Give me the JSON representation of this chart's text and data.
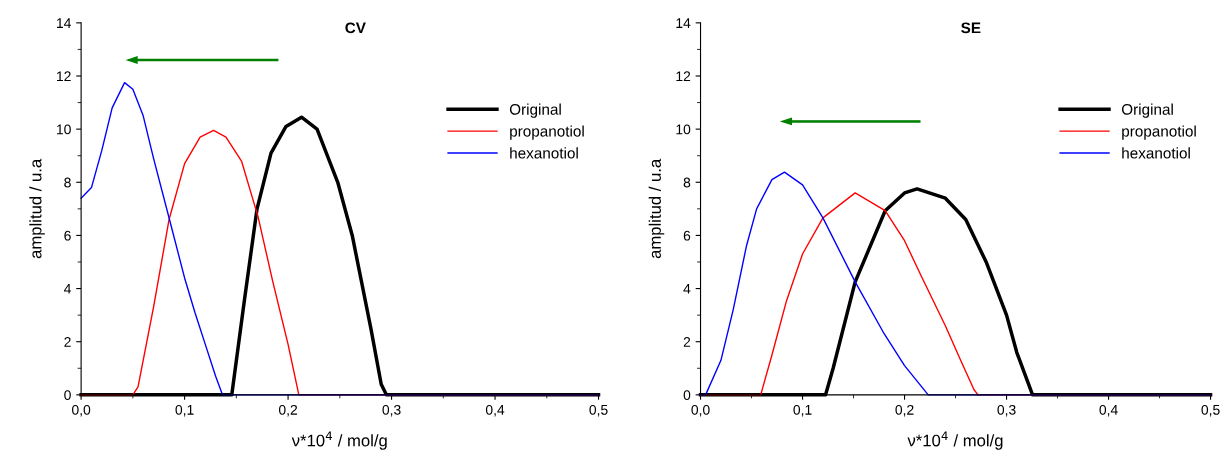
{
  "chart_data": [
    {
      "type": "line",
      "title": "CV",
      "xlabel": "ν*10$^{4}$ / mol/g",
      "ylabel": "amplitud / u.a",
      "xlim": [
        0,
        0.5
      ],
      "ylim": [
        0,
        14
      ],
      "xticks": [
        {
          "value": 0,
          "label": "0,0"
        },
        {
          "value": 0.1,
          "label": "0,1"
        },
        {
          "value": 0.2,
          "label": "0,2"
        },
        {
          "value": 0.3,
          "label": "0,3"
        },
        {
          "value": 0.4,
          "label": "0,4"
        },
        {
          "value": 0.5,
          "label": "0,5"
        }
      ],
      "yticks": [
        0,
        2,
        4,
        6,
        8,
        10,
        12,
        14
      ],
      "grid": false,
      "legend": "top right",
      "series": [
        {
          "name": "Original",
          "color": "#000000",
          "x": [
            0,
            0.1456,
            0.1576,
            0.17,
            0.1835,
            0.198,
            0.213,
            0.228,
            0.248,
            0.262,
            0.28,
            0.29,
            0.295,
            0.5
          ],
          "values": [
            0,
            0,
            3.5,
            7.0,
            9.1,
            10.1,
            10.45,
            10.0,
            8.0,
            6.0,
            2.5,
            0.4,
            0,
            0
          ]
        },
        {
          "name": "propanotiol",
          "color": "#ff0000",
          "x": [
            0,
            0.05,
            0.055,
            0.07,
            0.085,
            0.1,
            0.115,
            0.128,
            0.14,
            0.155,
            0.171,
            0.185,
            0.2,
            0.2104,
            0.5
          ],
          "values": [
            0,
            0,
            0.3,
            3.3,
            6.6,
            8.7,
            9.7,
            9.95,
            9.7,
            8.8,
            6.7,
            4.3,
            1.9,
            0,
            0
          ]
        },
        {
          "name": "hexanotiol",
          "color": "#0000ff",
          "x": [
            0,
            0.01,
            0.02,
            0.03,
            0.042,
            0.05,
            0.06,
            0.07,
            0.0854,
            0.1,
            0.11,
            0.12,
            0.13,
            0.1366,
            0.5
          ],
          "values": [
            7.4,
            7.8,
            9.2,
            10.8,
            11.75,
            11.5,
            10.5,
            8.9,
            6.6,
            4.4,
            3.1,
            1.9,
            0.7,
            0,
            0
          ]
        }
      ]
    },
    {
      "type": "line",
      "title": "SE",
      "xlabel": "ν*10$^{4}$ / mol/g",
      "ylabel": "amplitud / u.a",
      "xlim": [
        0,
        0.5
      ],
      "ylim": [
        0,
        14
      ],
      "xticks": [
        {
          "value": 0,
          "label": "0,0"
        },
        {
          "value": 0.1,
          "label": "0,1"
        },
        {
          "value": 0.2,
          "label": "0,2"
        },
        {
          "value": 0.3,
          "label": "0,3"
        },
        {
          "value": 0.4,
          "label": "0,4"
        },
        {
          "value": 0.5,
          "label": "0,5"
        }
      ],
      "yticks": [
        0,
        2,
        4,
        6,
        8,
        10,
        12,
        14
      ],
      "grid": false,
      "legend": "top right",
      "series": [
        {
          "name": "Original",
          "color": "#000000",
          "x": [
            0,
            0.1226,
            0.13,
            0.1516,
            0.181,
            0.2,
            0.2123,
            0.24,
            0.26,
            0.28,
            0.3,
            0.31,
            0.3255,
            0.5
          ],
          "values": [
            0,
            0,
            1.0,
            4.25,
            6.93,
            7.6,
            7.75,
            7.4,
            6.6,
            5.0,
            3.0,
            1.6,
            0,
            0
          ]
        },
        {
          "name": "propanotiol",
          "color": "#ff0000",
          "x": [
            0,
            0.059,
            0.07,
            0.084,
            0.1,
            0.12,
            0.1516,
            0.181,
            0.2,
            0.216,
            0.24,
            0.255,
            0.268,
            0.272,
            0.5
          ],
          "values": [
            0,
            0,
            1.5,
            3.5,
            5.3,
            6.66,
            7.6,
            6.93,
            5.8,
            4.5,
            2.6,
            1.3,
            0.2,
            0,
            0
          ]
        },
        {
          "name": "hexanotiol",
          "color": "#0000ff",
          "x": [
            0,
            0.005,
            0.02,
            0.032,
            0.045,
            0.055,
            0.07,
            0.0823,
            0.1,
            0.12,
            0.1516,
            0.18,
            0.2,
            0.2232,
            0.5
          ],
          "values": [
            0,
            0,
            1.3,
            3.2,
            5.6,
            7.0,
            8.1,
            8.38,
            7.9,
            6.66,
            4.25,
            2.3,
            1.1,
            0,
            0
          ]
        }
      ]
    }
  ]
}
